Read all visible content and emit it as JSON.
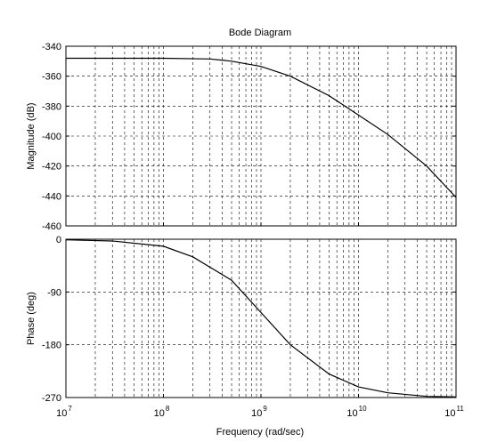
{
  "chart_data": {
    "type": "line",
    "title": "Bode Diagram",
    "xlabel": "Frequency  (rad/sec)",
    "xscale": "log",
    "xlim": [
      10000000,
      100000000000
    ],
    "xticks": [
      {
        "base": "10",
        "exp": "7"
      },
      {
        "base": "10",
        "exp": "8"
      },
      {
        "base": "10",
        "exp": "9"
      },
      {
        "base": "10",
        "exp": "10"
      },
      {
        "base": "10",
        "exp": "11"
      }
    ],
    "grid": true,
    "panels": [
      {
        "name": "magnitude",
        "ylabel": "Magnitude (dB)",
        "ylim": [
          -460,
          -340
        ],
        "yticks": [
          "-340",
          "-360",
          "-380",
          "-400",
          "-420",
          "-440",
          "-460"
        ],
        "series": [
          {
            "x": [
              10000000,
              100000000,
              300000000,
              500000000,
              1000000000,
              2000000000,
              5000000000,
              10000000000,
              20000000000,
              50000000000,
              100000000000
            ],
            "y": [
              -348,
              -348,
              -348.5,
              -350,
              -353.5,
              -360,
              -373,
              -386,
              -399,
              -420,
              -441
            ]
          }
        ]
      },
      {
        "name": "phase",
        "ylabel": "Phase (deg)",
        "ylim": [
          -270,
          0
        ],
        "yticks": [
          "0",
          "-90",
          "-180",
          "-270"
        ],
        "series": [
          {
            "x": [
              10000000,
              30000000,
              100000000,
              200000000,
              500000000,
              1000000000,
              2000000000,
              5000000000,
              10000000000,
              20000000000,
              50000000000,
              100000000000
            ],
            "y": [
              -1,
              -3,
              -12,
              -30,
              -70,
              -125,
              -180,
              -230,
              -252,
              -262,
              -268,
              -269
            ]
          }
        ]
      }
    ]
  }
}
